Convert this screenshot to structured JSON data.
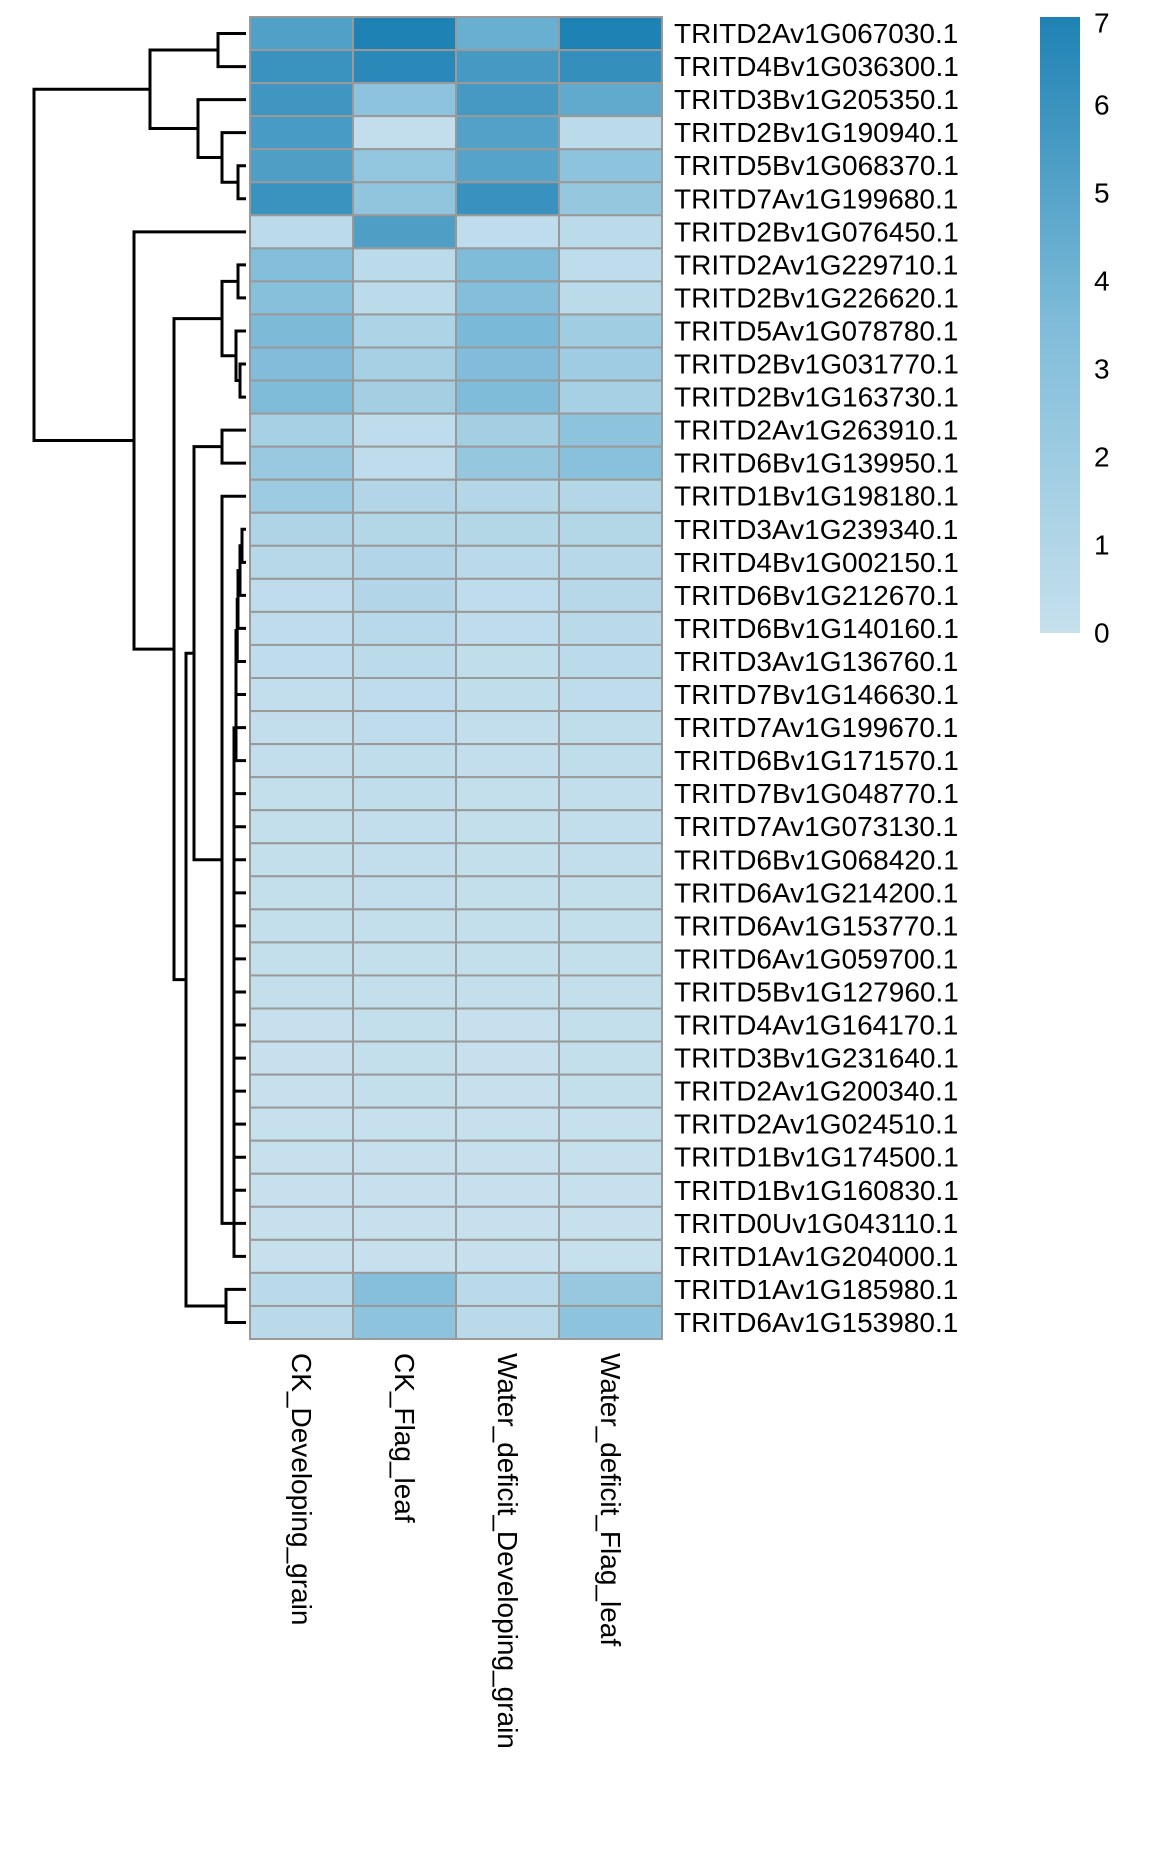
{
  "chart_data": {
    "type": "heatmap",
    "title": "",
    "columns": [
      "CK_Developing_grain",
      "CK_Flag_leaf",
      "Water_deficit_Developing_grain",
      "Water_deficit_Flag_leaf"
    ],
    "rows": [
      "TRITD2Av1G067030.1",
      "TRITD4Bv1G036300.1",
      "TRITD3Bv1G205350.1",
      "TRITD2Bv1G190940.1",
      "TRITD5Bv1G068370.1",
      "TRITD7Av1G199680.1",
      "TRITD2Bv1G076450.1",
      "TRITD2Av1G229710.1",
      "TRITD2Bv1G226620.1",
      "TRITD5Av1G078780.1",
      "TRITD2Bv1G031770.1",
      "TRITD2Bv1G163730.1",
      "TRITD2Av1G263910.1",
      "TRITD6Bv1G139950.1",
      "TRITD1Bv1G198180.1",
      "TRITD3Av1G239340.1",
      "TRITD4Bv1G002150.1",
      "TRITD6Bv1G212670.1",
      "TRITD6Bv1G140160.1",
      "TRITD3Av1G136760.1",
      "TRITD7Bv1G146630.1",
      "TRITD7Av1G199670.1",
      "TRITD6Bv1G171570.1",
      "TRITD7Bv1G048770.1",
      "TRITD7Av1G073130.1",
      "TRITD6Bv1G068420.1",
      "TRITD6Av1G214200.1",
      "TRITD6Av1G153770.1",
      "TRITD6Av1G059700.1",
      "TRITD5Bv1G127960.1",
      "TRITD4Av1G164170.1",
      "TRITD3Bv1G231640.1",
      "TRITD2Av1G200340.1",
      "TRITD2Av1G024510.1",
      "TRITD1Bv1G174500.1",
      "TRITD1Bv1G160830.1",
      "TRITD0Uv1G043110.1",
      "TRITD1Av1G204000.1",
      "TRITD1Av1G185980.1",
      "TRITD6Av1G153980.1"
    ],
    "values": [
      [
        5.2,
        7.0,
        4.3,
        7.0
      ],
      [
        6.0,
        6.6,
        5.6,
        6.2
      ],
      [
        5.8,
        2.8,
        5.6,
        4.6
      ],
      [
        5.5,
        0.2,
        5.1,
        0.5
      ],
      [
        5.3,
        2.5,
        5.0,
        2.8
      ],
      [
        6.0,
        2.6,
        6.1,
        2.4
      ],
      [
        0.5,
        5.3,
        0.4,
        0.5
      ],
      [
        3.3,
        0.5,
        3.5,
        0.4
      ],
      [
        3.1,
        0.5,
        3.3,
        0.5
      ],
      [
        3.6,
        1.3,
        3.7,
        1.8
      ],
      [
        3.4,
        1.6,
        3.4,
        1.9
      ],
      [
        3.5,
        1.7,
        3.5,
        1.6
      ],
      [
        1.6,
        0.4,
        1.7,
        2.8
      ],
      [
        2.2,
        0.4,
        2.4,
        3.0
      ],
      [
        2.0,
        1.0,
        0.9,
        0.9
      ],
      [
        1.2,
        0.9,
        0.9,
        0.9
      ],
      [
        0.8,
        1.0,
        0.6,
        0.8
      ],
      [
        0.4,
        1.0,
        0.4,
        0.8
      ],
      [
        0.4,
        0.7,
        0.4,
        0.6
      ],
      [
        0.4,
        0.5,
        0.3,
        0.5
      ],
      [
        0.2,
        0.4,
        0.3,
        0.4
      ],
      [
        0.2,
        0.4,
        0.2,
        0.3
      ],
      [
        0.2,
        0.3,
        0.2,
        0.3
      ],
      [
        0.1,
        0.3,
        0.1,
        0.2
      ],
      [
        0.1,
        0.2,
        0.1,
        0.2
      ],
      [
        0.1,
        0.2,
        0.1,
        0.2
      ],
      [
        0.1,
        0.2,
        0.1,
        0.1
      ],
      [
        0.1,
        0.1,
        0.1,
        0.1
      ],
      [
        0.1,
        0.1,
        0.1,
        0.1
      ],
      [
        0.1,
        0.1,
        0.1,
        0.1
      ],
      [
        0.0,
        0.1,
        0.0,
        0.1
      ],
      [
        0.0,
        0.1,
        0.0,
        0.1
      ],
      [
        0.0,
        0.1,
        0.0,
        0.1
      ],
      [
        0.0,
        0.0,
        0.0,
        0.0
      ],
      [
        0.0,
        0.0,
        0.0,
        0.0
      ],
      [
        0.0,
        0.0,
        0.0,
        0.0
      ],
      [
        0.0,
        0.0,
        0.0,
        0.0
      ],
      [
        0.0,
        0.0,
        0.0,
        0.0
      ],
      [
        0.6,
        3.2,
        0.6,
        2.3
      ],
      [
        0.6,
        2.8,
        0.6,
        2.8
      ]
    ],
    "color_scale": {
      "min": 0,
      "max": 7,
      "low_color": "#c6e0ed",
      "mid_color": "#7fbcd9",
      "high_color": "#1f82b4",
      "ticks": [
        "0",
        "1",
        "2",
        "3",
        "4",
        "5",
        "6",
        "7"
      ]
    },
    "cell_border_color": "#999999",
    "dendrogram": {
      "side": "left",
      "merges": [
        [
          4,
          5,
          0.2
        ],
        [
          3,
          20001,
          0.6
        ],
        [
          2,
          20002,
          1.2
        ],
        [
          0,
          1,
          0.7
        ],
        [
          20004,
          20003,
          2.4
        ],
        [
          7,
          8,
          0.2
        ],
        [
          10,
          11,
          0.15
        ],
        [
          9,
          20007,
          0.25
        ],
        [
          20006,
          20008,
          0.6
        ],
        [
          12,
          13,
          0.6
        ],
        [
          15,
          16,
          0.1
        ],
        [
          20011,
          17,
          0.15
        ],
        [
          20012,
          18,
          0.2
        ],
        [
          20013,
          19,
          0.22
        ],
        [
          20014,
          20,
          0.25
        ],
        [
          20015,
          21,
          0.25
        ],
        [
          20016,
          22,
          0.25
        ],
        [
          20017,
          23,
          0.3
        ],
        [
          20018,
          24,
          0.3
        ],
        [
          20019,
          25,
          0.3
        ],
        [
          20020,
          26,
          0.3
        ],
        [
          20021,
          27,
          0.3
        ],
        [
          20022,
          28,
          0.3
        ],
        [
          20023,
          29,
          0.3
        ],
        [
          20024,
          30,
          0.3
        ],
        [
          20025,
          31,
          0.3
        ],
        [
          20026,
          32,
          0.3
        ],
        [
          20027,
          33,
          0.3
        ],
        [
          20028,
          34,
          0.3
        ],
        [
          20029,
          35,
          0.3
        ],
        [
          20030,
          36,
          0.3
        ],
        [
          20031,
          37,
          0.3
        ],
        [
          14,
          20032,
          0.6
        ],
        [
          20010,
          20033,
          1.3
        ],
        [
          38,
          39,
          0.5
        ],
        [
          20034,
          20035,
          1.5
        ],
        [
          20009,
          20036,
          1.8
        ],
        [
          6,
          20037,
          2.8
        ],
        [
          20005,
          20038,
          5.3
        ]
      ],
      "max_height": 5.3
    }
  }
}
